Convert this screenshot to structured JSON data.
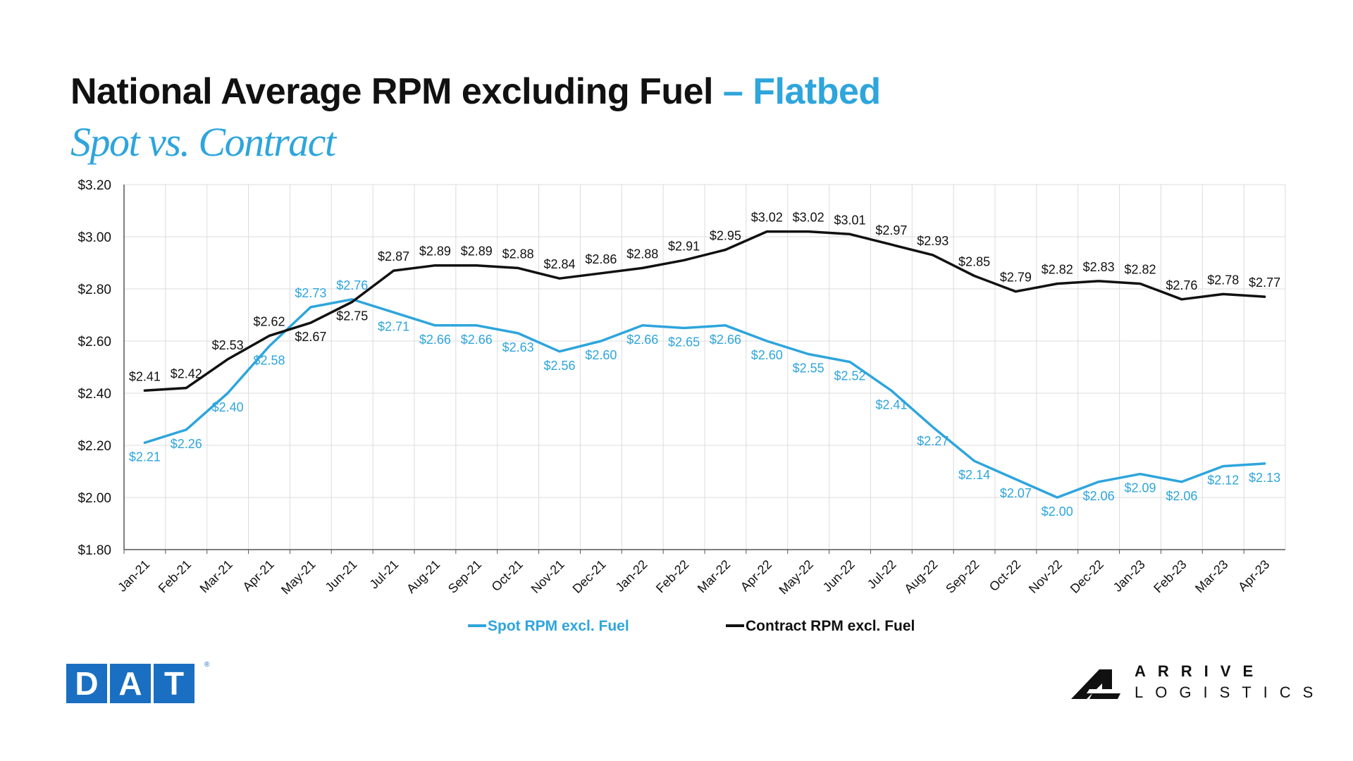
{
  "title": {
    "main": "National Average RPM excluding Fuel",
    "accent": "– Flatbed"
  },
  "subtitle": "Spot vs. Contract",
  "colors": {
    "spot": "#2ea5dc",
    "contract": "#111111",
    "grid": "#dcdcdc",
    "axis": "#555555"
  },
  "chart_data": {
    "type": "line",
    "categories": [
      "Jan-21",
      "Feb-21",
      "Mar-21",
      "Apr-21",
      "May-21",
      "Jun-21",
      "Jul-21",
      "Aug-21",
      "Sep-21",
      "Oct-21",
      "Nov-21",
      "Dec-21",
      "Jan-22",
      "Feb-22",
      "Mar-22",
      "Apr-22",
      "May-22",
      "Jun-22",
      "Jul-22",
      "Aug-22",
      "Sep-22",
      "Oct-22",
      "Nov-22",
      "Dec-22",
      "Jan-23",
      "Feb-23",
      "Mar-23",
      "Apr-23"
    ],
    "series": [
      {
        "name": "Spot RPM excl. Fuel",
        "color": "#2ea5dc",
        "values": [
          2.21,
          2.26,
          2.4,
          2.58,
          2.73,
          2.76,
          2.71,
          2.66,
          2.66,
          2.63,
          2.56,
          2.6,
          2.66,
          2.65,
          2.66,
          2.6,
          2.55,
          2.52,
          2.41,
          2.27,
          2.14,
          2.07,
          2.0,
          2.06,
          2.09,
          2.06,
          2.12,
          2.13
        ],
        "labels": [
          "$2.21",
          "$2.26",
          "$2.40",
          "$2.58",
          "$2.73",
          "$2.76",
          "$2.71",
          "$2.66",
          "$2.66",
          "$2.63",
          "$2.56",
          "$2.60",
          "$2.66",
          "$2.65",
          "$2.66",
          "$2.60",
          "$2.55",
          "$2.52",
          "$2.41",
          "$2.27",
          "$2.14",
          "$2.07",
          "$2.00",
          "$2.06",
          "$2.09",
          "$2.06",
          "$2.12",
          "$2.13"
        ]
      },
      {
        "name": "Contract RPM excl. Fuel",
        "color": "#111111",
        "values": [
          2.41,
          2.42,
          2.53,
          2.62,
          2.67,
          2.75,
          2.87,
          2.89,
          2.89,
          2.88,
          2.84,
          2.86,
          2.88,
          2.91,
          2.95,
          3.02,
          3.02,
          3.01,
          2.97,
          2.93,
          2.85,
          2.79,
          2.82,
          2.83,
          2.82,
          2.76,
          2.78,
          2.77
        ],
        "labels": [
          "$2.41",
          "$2.42",
          "$2.53",
          "$2.62",
          "$2.67",
          "$2.75",
          "$2.87",
          "$2.89",
          "$2.89",
          "$2.88",
          "$2.84",
          "$2.86",
          "$2.88",
          "$2.91",
          "$2.95",
          "$3.02",
          "$3.02",
          "$3.01",
          "$2.97",
          "$2.93",
          "$2.85",
          "$2.79",
          "$2.82",
          "$2.83",
          "$2.82",
          "$2.76",
          "$2.78",
          "$2.77"
        ]
      }
    ],
    "ylim": [
      1.8,
      3.2
    ],
    "yticks": [
      1.8,
      2.0,
      2.2,
      2.4,
      2.6,
      2.8,
      3.0,
      3.2
    ],
    "ytick_labels": [
      "$1.80",
      "$2.00",
      "$2.20",
      "$2.40",
      "$2.60",
      "$2.80",
      "$3.00",
      "$3.20"
    ],
    "grid": true,
    "legend_position": "bottom-center"
  },
  "logos": {
    "dat": [
      "D",
      "A",
      "T"
    ],
    "dat_reg": "®",
    "arrive_line1": "ARRIVE",
    "arrive_line2": "LOGISTICS"
  }
}
